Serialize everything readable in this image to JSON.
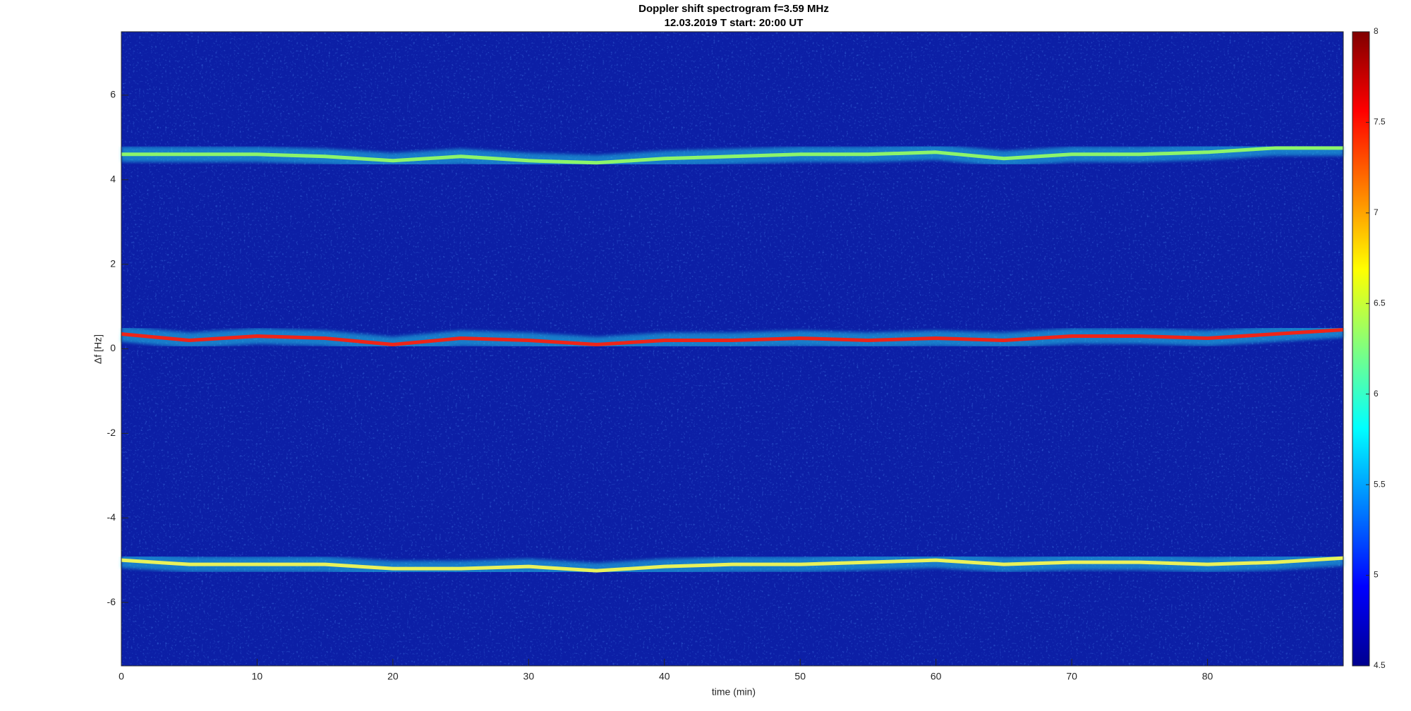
{
  "chart_data": {
    "type": "spectrogram",
    "title": "Doppler shift spectrogram f=3.59 MHz",
    "subtitle": "12.03.2019   T start: 20:00 UT",
    "x_label": "time (min)",
    "y_label": "Δf [Hz]",
    "xlim": [
      0,
      90
    ],
    "xticks": [
      0,
      10,
      20,
      30,
      40,
      50,
      60,
      70,
      80
    ],
    "ylim": [
      -7.5,
      7.5
    ],
    "yticks": [
      -6,
      -4,
      -2,
      0,
      2,
      4,
      6
    ],
    "background": "#0c1fa6",
    "colormap": "jet",
    "colorbar": {
      "clim": [
        4.5,
        8
      ],
      "ticks": [
        4.5,
        5,
        5.5,
        6,
        6.5,
        7,
        7.5,
        8
      ]
    },
    "x": [
      0,
      5,
      10,
      15,
      20,
      25,
      30,
      35,
      40,
      45,
      50,
      55,
      60,
      65,
      70,
      75,
      80,
      85,
      90
    ],
    "series": [
      {
        "color": "#8cf56a",
        "values": [
          4.6,
          4.6,
          4.6,
          4.55,
          4.45,
          4.55,
          4.45,
          4.4,
          4.5,
          4.55,
          4.6,
          4.6,
          4.65,
          4.5,
          4.6,
          4.6,
          4.65,
          4.75,
          4.75
        ]
      },
      {
        "color": "#ee2418",
        "values": [
          0.35,
          0.2,
          0.3,
          0.25,
          0.1,
          0.25,
          0.2,
          0.1,
          0.2,
          0.2,
          0.25,
          0.2,
          0.25,
          0.2,
          0.3,
          0.3,
          0.25,
          0.35,
          0.45
        ]
      },
      {
        "color": "#e9f25a",
        "values": [
          -5.0,
          -5.1,
          -5.1,
          -5.1,
          -5.2,
          -5.2,
          -5.15,
          -5.25,
          -5.15,
          -5.1,
          -5.1,
          -5.05,
          -5.0,
          -5.1,
          -5.05,
          -5.05,
          -5.1,
          -5.05,
          -4.95
        ]
      }
    ]
  }
}
